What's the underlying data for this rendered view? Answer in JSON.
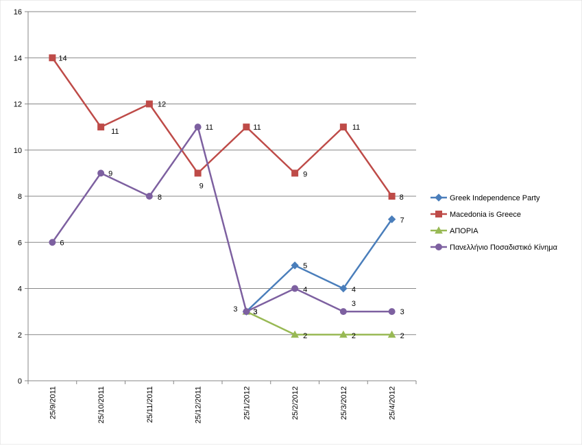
{
  "chart_data": {
    "type": "line",
    "categories": [
      "25/9/2011",
      "25/10/2011",
      "25/11/2011",
      "25/12/2011",
      "25/1/2012",
      "25/2/2012",
      "25/3/2012",
      "25/4/2012"
    ],
    "ylim": [
      0,
      16
    ],
    "yticks": [
      0,
      2,
      4,
      6,
      8,
      10,
      12,
      14,
      16
    ],
    "grid": true,
    "legend_position": "right",
    "series": [
      {
        "name": "Greek Independence Party",
        "color": "#4a7ebb",
        "marker": "diamond",
        "values": [
          null,
          null,
          null,
          null,
          3,
          5,
          4,
          7
        ]
      },
      {
        "name": "Macedonia is Greece",
        "color": "#be4b48",
        "marker": "square",
        "values": [
          14,
          11,
          12,
          9,
          11,
          9,
          11,
          8
        ]
      },
      {
        "name": "ΑΠΟΡΙΑ",
        "color": "#98b954",
        "marker": "triangle",
        "values": [
          null,
          null,
          null,
          null,
          3,
          2,
          2,
          2
        ]
      },
      {
        "name": "Πανελλήνιο Ποσαδιστικό Κίνημα",
        "color": "#7d60a0",
        "marker": "circle",
        "values": [
          6,
          9,
          8,
          11,
          3,
          4,
          3,
          3
        ]
      }
    ]
  }
}
